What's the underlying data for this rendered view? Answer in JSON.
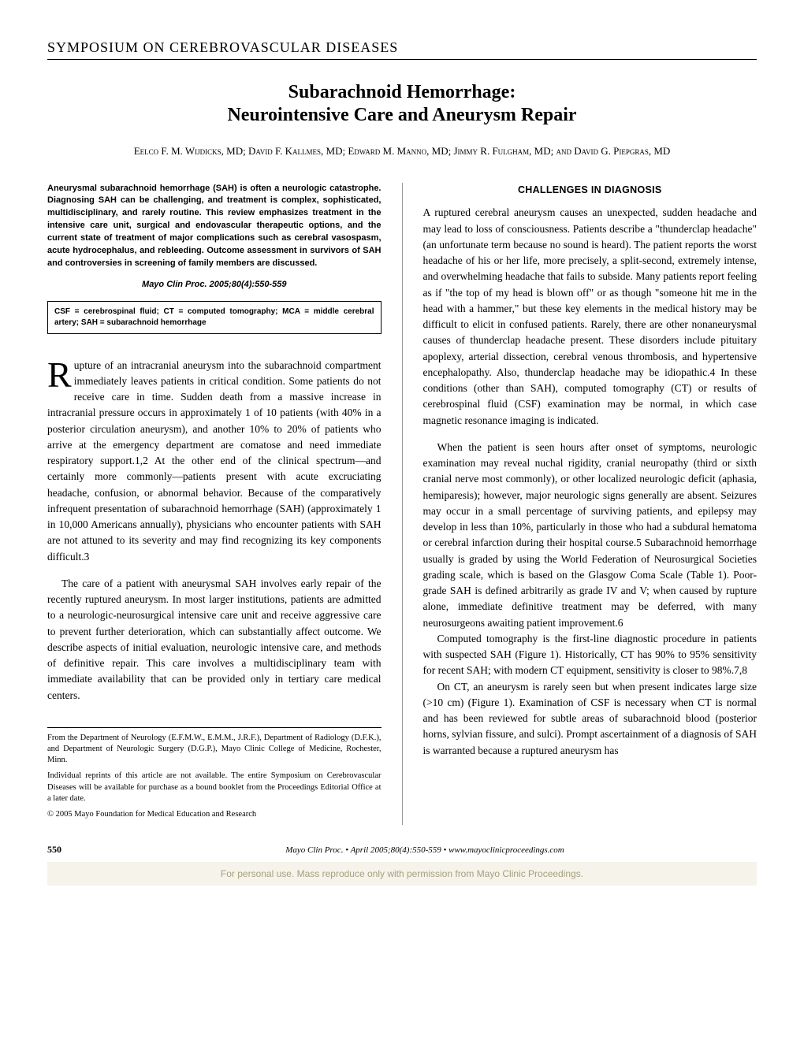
{
  "header": {
    "section": "SYMPOSIUM ON CEREBROVASCULAR DISEASES"
  },
  "title": {
    "line1": "Subarachnoid Hemorrhage:",
    "line2": "Neurointensive Care and Aneurysm Repair"
  },
  "authors": "Eelco F. M. Wijdicks, MD; David F. Kallmes, MD; Edward M. Manno, MD; Jimmy R. Fulgham, MD; and David G. Piepgras, MD",
  "abstract": "Aneurysmal subarachnoid hemorrhage (SAH) is often a neurologic catastrophe. Diagnosing SAH can be challenging, and treatment is complex, sophisticated, multidisciplinary, and rarely routine. This review emphasizes treatment in the intensive care unit, surgical and endovascular therapeutic options, and the current state of treatment of major complications such as cerebral vasospasm, acute hydrocephalus, and rebleeding. Outcome assessment in survivors of SAH and controversies in screening of family members are discussed.",
  "citation": "Mayo Clin Proc. 2005;80(4):550-559",
  "abbreviations": "CSF = cerebrospinal fluid; CT = computed tomography; MCA = middle cerebral artery; SAH = subarachnoid hemorrhage",
  "intro": {
    "dropcap": "R",
    "p1": "upture of an intracranial aneurysm into the subarachnoid compartment immediately leaves patients in critical condition. Some patients do not receive care in time. Sudden death from a massive increase in intracranial pressure occurs in approximately 1 of 10 patients (with 40% in a posterior circulation aneurysm), and another 10% to 20% of patients who arrive at the emergency department are comatose and need immediate respiratory support.1,2 At the other end of the clinical spectrum—and certainly more commonly—patients present with acute excruciating headache, confusion, or abnormal behavior. Because of the comparatively infrequent presentation of subarachnoid hemorrhage (SAH) (approximately 1 in 10,000 Americans annually), physicians who encounter patients with SAH are not attuned to its severity and may find recognizing its key components difficult.3",
    "p2": "The care of a patient with aneurysmal SAH involves early repair of the recently ruptured aneurysm. In most larger institutions, patients are admitted to a neurologic-neurosurgical intensive care unit and receive aggressive care to prevent further deterioration, which can substantially affect outcome. We describe aspects of initial evaluation, neurologic intensive care, and methods of definitive repair. This care involves a multidisciplinary team with immediate availability that can be provided only in tertiary care medical centers."
  },
  "right": {
    "heading": "CHALLENGES IN DIAGNOSIS",
    "p1": "A ruptured cerebral aneurysm causes an unexpected, sudden headache and may lead to loss of consciousness. Patients describe a \"thunderclap headache\" (an unfortunate term because no sound is heard). The patient reports the worst headache of his or her life, more precisely, a split-second, extremely intense, and overwhelming headache that fails to subside. Many patients report feeling as if \"the top of my head is blown off\" or as though \"someone hit me in the head with a hammer,\" but these key elements in the medical history may be difficult to elicit in confused patients. Rarely, there are other nonaneurysmal causes of thunderclap headache present. These disorders include pituitary apoplexy, arterial dissection, cerebral venous thrombosis, and hypertensive encephalopathy. Also, thunderclap headache may be idiopathic.4 In these conditions (other than SAH), computed tomography (CT) or results of cerebrospinal fluid (CSF) examination may be normal, in which case magnetic resonance imaging is indicated.",
    "p2": "When the patient is seen hours after onset of symptoms, neurologic examination may reveal nuchal rigidity, cranial neuropathy (third or sixth cranial nerve most commonly), or other localized neurologic deficit (aphasia, hemiparesis); however, major neurologic signs generally are absent. Seizures may occur in a small percentage of surviving patients, and epilepsy may develop in less than 10%, particularly in those who had a subdural hematoma or cerebral infarction during their hospital course.5 Subarachnoid hemorrhage usually is graded by using the World Federation of Neurosurgical Societies grading scale, which is based on the Glasgow Coma Scale (Table 1). Poor-grade SAH is defined arbitrarily as grade IV and V; when caused by rupture alone, immediate definitive treatment may be deferred, with many neurosurgeons awaiting patient improvement.6",
    "p3": "Computed tomography is the first-line diagnostic procedure in patients with suspected SAH (Figure 1). Historically, CT has 90% to 95% sensitivity for recent SAH; with modern CT equipment, sensitivity is closer to 98%.7,8",
    "p4": "On CT, an aneurysm is rarely seen but when present indicates large size (>10 cm) (Figure 1). Examination of CSF is necessary when CT is normal and has been reviewed for subtle areas of subarachnoid blood (posterior horns, sylvian fissure, and sulci). Prompt ascertainment of a diagnosis of SAH is warranted because a ruptured aneurysm has"
  },
  "footnotes": {
    "f1": "From the Department of Neurology (E.F.M.W., E.M.M., J.R.F.), Department of Radiology (D.F.K.), and Department of Neurologic Surgery (D.G.P.), Mayo Clinic College of Medicine, Rochester, Minn.",
    "f2": "Individual reprints of this article are not available. The entire Symposium on Cerebrovascular Diseases will be available for purchase as a bound booklet from the Proceedings Editorial Office at a later date.",
    "f3": "© 2005 Mayo Foundation for Medical Education and Research"
  },
  "footer": {
    "page": "550",
    "center": "Mayo Clin Proc.    •    April 2005;80(4):550-559    •    www.mayoclinicproceedings.com"
  },
  "permission": "For personal use. Mass reproduce only with permission from Mayo Clinic Proceedings."
}
